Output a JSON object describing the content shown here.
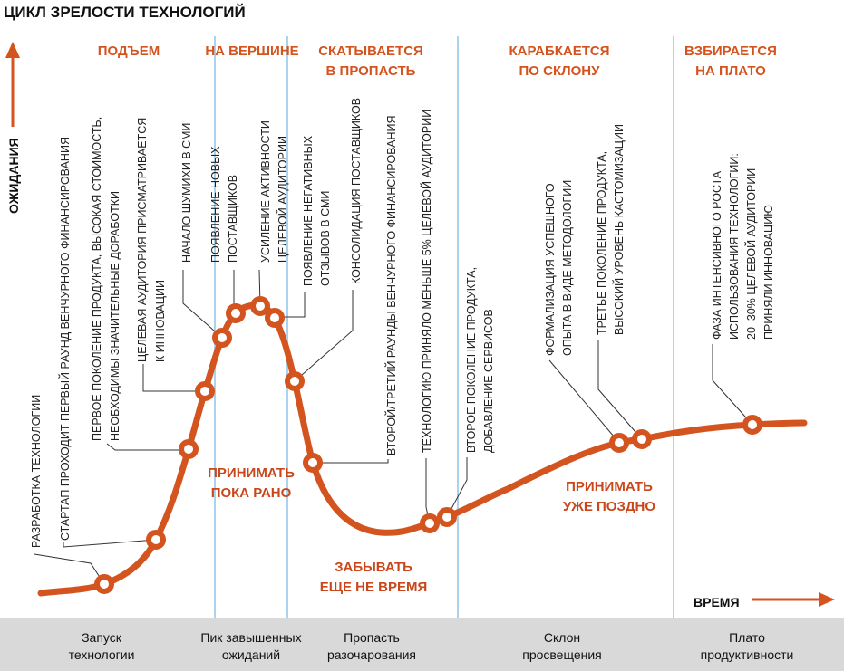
{
  "title": "ЦИКЛ ЗРЕЛОСТИ ТЕХНОЛОГИЙ",
  "colors": {
    "curve": "#d4541f",
    "dividers": "#a9d3ee",
    "band": "#d9d9d9"
  },
  "axes": {
    "y": "ОЖИДАНИЯ",
    "x": "ВРЕМЯ"
  },
  "phases": [
    {
      "lines": [
        "ПОДЪЕМ"
      ]
    },
    {
      "lines": [
        "НА ВЕРШИНЕ"
      ]
    },
    {
      "lines": [
        "СКАТЫВАЕТСЯ",
        "В ПРОПАСТЬ"
      ]
    },
    {
      "lines": [
        "КАРАБКАЕТСЯ",
        "ПО СКЛОНУ"
      ]
    },
    {
      "lines": [
        "ВЗБИРАЕТСЯ",
        "НА ПЛАТО"
      ]
    }
  ],
  "advice": [
    {
      "lines": [
        "ПРИНИМАТЬ",
        "ПОКА РАНО"
      ]
    },
    {
      "lines": [
        "ЗАБЫВАТЬ",
        "ЕЩЕ НЕ ВРЕМЯ"
      ]
    },
    {
      "lines": [
        "ПРИНИМАТЬ",
        "УЖЕ ПОЗДНО"
      ]
    }
  ],
  "stages": [
    {
      "lines": [
        "Запуск",
        "технологии"
      ]
    },
    {
      "lines": [
        "Пик завышенных",
        "ожиданий"
      ]
    },
    {
      "lines": [
        "Пропасть",
        "разочарования"
      ]
    },
    {
      "lines": [
        "Склон",
        "просвещения"
      ]
    },
    {
      "lines": [
        "Плато",
        "продуктивности"
      ]
    }
  ],
  "events": [
    {
      "lines": [
        "РАЗРАБОТКА ТЕХНОЛОГИИ"
      ]
    },
    {
      "lines": [
        "СТАРТАП ПРОХОДИТ ПЕРВЫЙ РАУНД ВЕНЧУРНОГО ФИНАНСИРОВАНИЯ"
      ]
    },
    {
      "lines": [
        "ПЕРВОЕ ПОКОЛЕНИЕ ПРОДУКТА, ВЫСОКАЯ СТОИМОСТЬ,",
        "НЕОБХОДИМЫ ЗНАЧИТЕЛЬНЫЕ ДОРАБОТКИ"
      ]
    },
    {
      "lines": [
        "ЦЕЛЕВАЯ АУДИТОРИЯ ПРИСМАТРИВАЕТСЯ",
        "К ИННОВАЦИИ"
      ]
    },
    {
      "lines": [
        "НАЧАЛО ШУМИХИ В СМИ"
      ]
    },
    {
      "lines": [
        "ПОЯВЛЕНИЕ НОВЫХ",
        "ПОСТАВЩИКОВ"
      ]
    },
    {
      "lines": [
        "УСИЛЕНИЕ АКТИВНОСТИ",
        "ЦЕЛЕВОЙ АУДИТОРИИ"
      ]
    },
    {
      "lines": [
        "ПОЯВЛЕНИЕ НЕГАТИВНЫХ",
        "ОТЗЫВОВ В СМИ"
      ]
    },
    {
      "lines": [
        "КОНСОЛИДАЦИЯ ПОСТАВЩИКОВ"
      ]
    },
    {
      "lines": [
        "ВТОРОЙ/ТРЕТИЙ РАУНДЫ ВЕНЧУРНОГО ФИНАНСИРОВАНИЯ"
      ]
    },
    {
      "lines": [
        "ТЕХНОЛОГИЮ ПРИНЯЛО МЕНЬШЕ 5% ЦЕЛЕВОЙ АУДИТОРИИ"
      ]
    },
    {
      "lines": [
        "ВТОРОЕ ПОКОЛЕНИЕ ПРОДУКТА,",
        "ДОБАВЛЕНИЕ СЕРВИСОВ"
      ]
    },
    {
      "lines": [
        "ФОРМАЛИЗАЦИЯ УСПЕШНОГО",
        "ОПЫТА В ВИДЕ МЕТОДОЛОГИИ"
      ]
    },
    {
      "lines": [
        "ТРЕТЬЕ ПОКОЛЕНИЕ ПРОДУКТА,",
        "ВЫСОКИЙ УРОВЕНЬ КАСТОМИЗАЦИИ"
      ]
    },
    {
      "lines": [
        "ФАЗА ИНТЕНСИВНОГО РОСТА",
        "ИСПОЛЬЗОВАНИЯ ТЕХНОЛОГИИ:",
        "20–30% ЦЕЛЕВОЙ АУДИТОРИИ",
        "ПРИНЯЛИ ИННОВАЦИЮ"
      ]
    }
  ]
}
